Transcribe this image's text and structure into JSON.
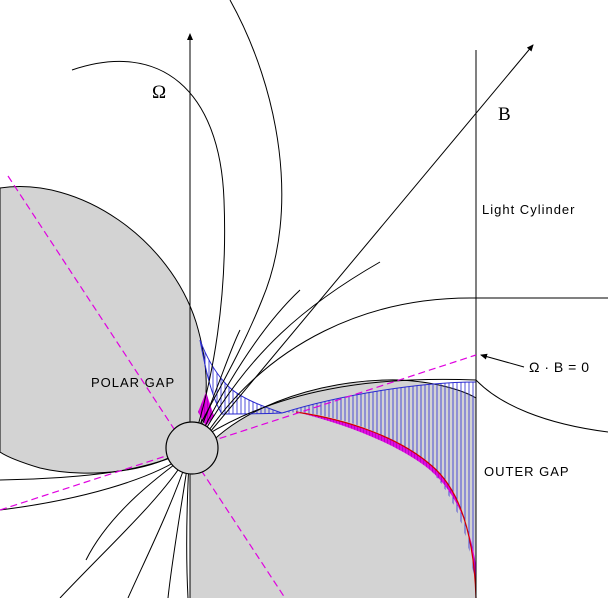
{
  "labels": {
    "omega": "Ω",
    "b": "B",
    "light_cylinder": "Light Cylinder",
    "null_surface": "Ω · B = 0",
    "polar_gap": "POLAR GAP",
    "outer_gap": "OUTER GAP"
  },
  "colors": {
    "lobe_fill": "#d3d3d3",
    "hatch": "#3b3bd6",
    "gap_magenta": "#e000e0",
    "gap_red": "#d00000",
    "dashed": "#e000e0",
    "line": "#000000"
  }
}
